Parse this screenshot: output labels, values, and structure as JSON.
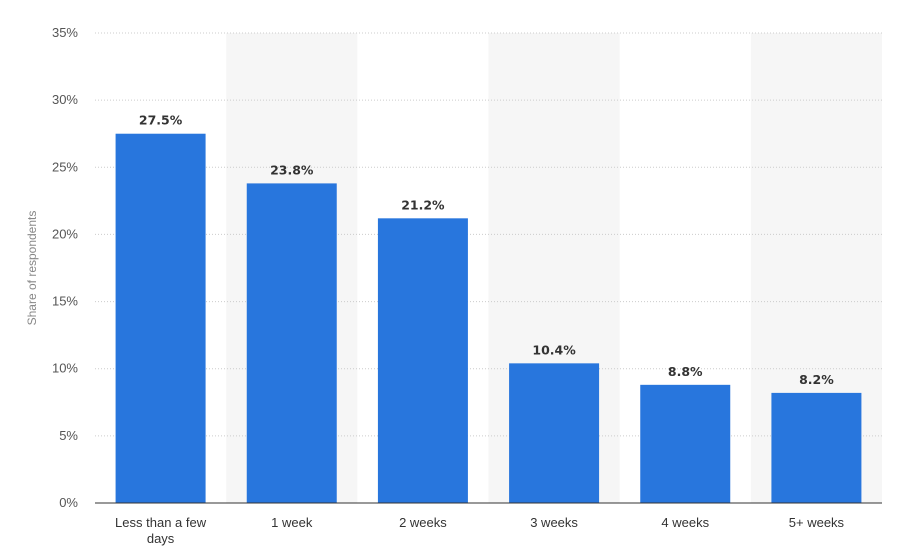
{
  "chart_data": {
    "type": "bar",
    "categories": [
      "Less than a few days",
      "1 week",
      "2 weeks",
      "3 weeks",
      "4 weeks",
      "5+ weeks"
    ],
    "category_label_lines": [
      [
        "Less than a few",
        "days"
      ],
      [
        "1 week"
      ],
      [
        "2 weeks"
      ],
      [
        "3 weeks"
      ],
      [
        "4 weeks"
      ],
      [
        "5+ weeks"
      ]
    ],
    "values": [
      27.5,
      23.8,
      21.2,
      10.4,
      8.8,
      8.2
    ],
    "data_labels": [
      "27.5%",
      "23.8%",
      "21.2%",
      "10.4%",
      "8.8%",
      "8.2%"
    ],
    "ylabel": "Share of respondents",
    "ylim": [
      0,
      35
    ],
    "yticks": [
      0,
      5,
      10,
      15,
      20,
      25,
      30,
      35
    ],
    "ytick_labels": [
      "0%",
      "5%",
      "10%",
      "15%",
      "20%",
      "25%",
      "30%",
      "35%"
    ],
    "grid": true,
    "legend": "none",
    "bar_color": "#2876dd",
    "band_color": "#f6f6f6"
  }
}
